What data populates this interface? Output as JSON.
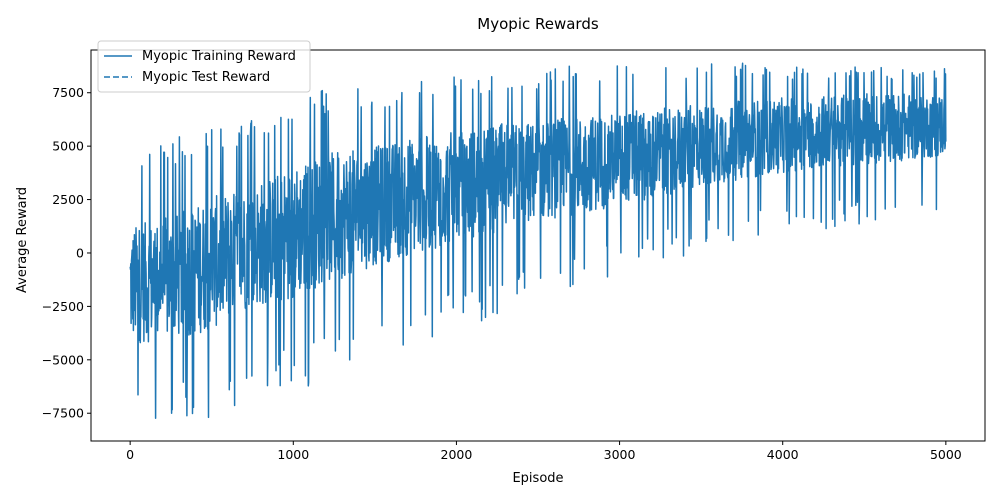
{
  "chart_data": {
    "type": "line",
    "title": "Myopic Rewards",
    "xlabel": "Episode",
    "ylabel": "Average Reward",
    "xlim": [
      -240,
      5240
    ],
    "ylim": [
      -8800,
      9500
    ],
    "x_ticks": [
      0,
      1000,
      2000,
      3000,
      4000,
      5000
    ],
    "y_ticks": [
      -7500,
      -5000,
      -2500,
      0,
      2500,
      5000,
      7500
    ],
    "x_tick_labels": [
      "0",
      "1000",
      "2000",
      "3000",
      "4000",
      "5000"
    ],
    "y_tick_labels": [
      "−7500",
      "−5000",
      "−2500",
      "0",
      "2500",
      "5000",
      "7500"
    ],
    "grid": false,
    "legend_position": "top-left",
    "colors": {
      "series": "#1f77b4",
      "axes": "#000000",
      "legend_border": "#cccccc"
    },
    "series": [
      {
        "name": "Myopic Training Reward",
        "style": "solid",
        "x": [
          0,
          250,
          500,
          750,
          1000,
          1250,
          1500,
          1750,
          2000,
          2250,
          2500,
          2750,
          3000,
          3250,
          3500,
          3750,
          4000,
          4250,
          4500,
          4750,
          5000
        ],
        "mean": [
          -1500,
          -1200,
          -500,
          300,
          1000,
          1700,
          2200,
          2700,
          3100,
          3500,
          3800,
          4100,
          4400,
          4700,
          5000,
          5300,
          5500,
          5700,
          5800,
          5900,
          6000
        ],
        "upper": [
          4500,
          5400,
          6200,
          6200,
          7500,
          7700,
          7700,
          8000,
          8300,
          8600,
          8600,
          8900,
          8900,
          8900,
          8900,
          8900,
          8700,
          8700,
          8700,
          8700,
          8700
        ],
        "lower": [
          -8000,
          -8000,
          -8000,
          -7000,
          -6500,
          -6100,
          -5000,
          -4500,
          -3500,
          -3000,
          -2000,
          -1500,
          -1000,
          -500,
          0,
          500,
          700,
          1000,
          1200,
          1500,
          2000
        ]
      },
      {
        "name": "Myopic Test Reward",
        "style": "dashed",
        "x": [],
        "y": []
      }
    ]
  }
}
